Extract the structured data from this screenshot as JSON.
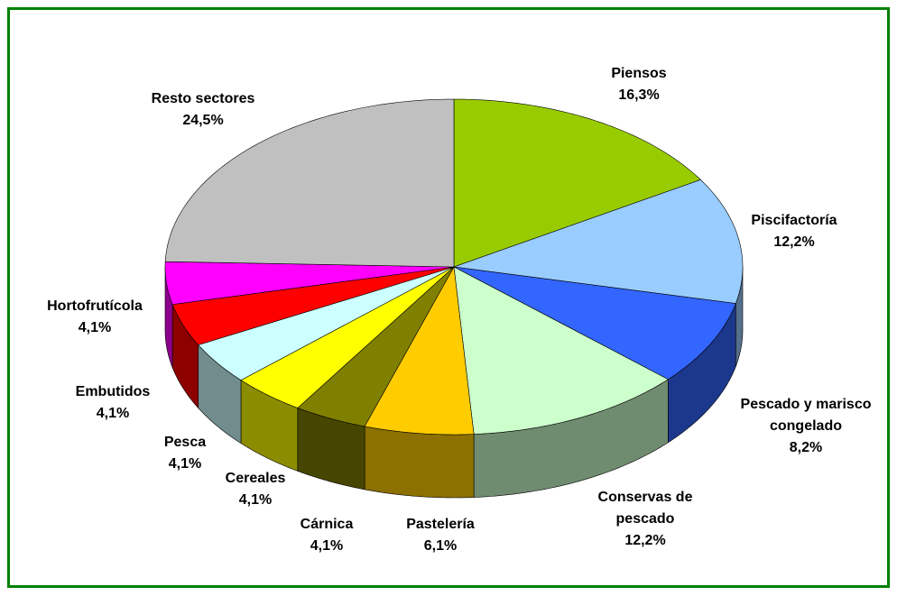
{
  "chart_data": {
    "type": "pie3d",
    "categories": [
      "Piensos",
      "Piscifactoría",
      "Pescado y marisco congelado",
      "Conservas de pescado",
      "Pastelería",
      "Cárnica",
      "Cereales",
      "Pesca",
      "Embutidos",
      "Hortofrutícola",
      "Resto sectores"
    ],
    "values": [
      16.3,
      12.2,
      8.2,
      12.2,
      6.1,
      4.1,
      4.1,
      4.1,
      4.1,
      4.1,
      24.5
    ],
    "value_labels": [
      "16,3%",
      "12,2%",
      "8,2%",
      "12,2%",
      "6,1%",
      "4,1%",
      "4,1%",
      "4,1%",
      "4,1%",
      "4,1%",
      "24,5%"
    ],
    "colors": [
      "#99cc00",
      "#99ccff",
      "#3366ff",
      "#ccffcc",
      "#ffcc00",
      "#808000",
      "#ffff00",
      "#ccffff",
      "#ff0000",
      "#ff00ff",
      "#c0c0c0"
    ]
  }
}
